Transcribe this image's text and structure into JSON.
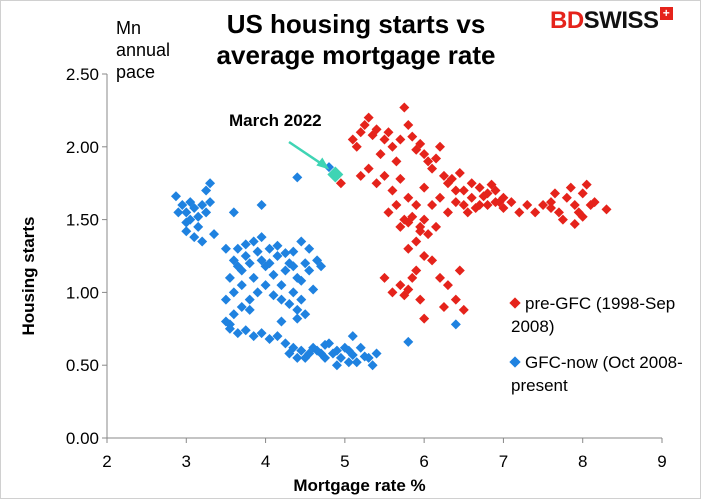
{
  "chart_data": {
    "type": "scatter",
    "title": "US housing starts vs average mortgage rate",
    "unit_label": "Mn annual pace",
    "xlabel": "Mortgage rate %",
    "ylabel": "Housing starts",
    "xlim": [
      2,
      9
    ],
    "ylim": [
      0,
      2.5
    ],
    "x_ticks": [
      "2",
      "3",
      "4",
      "5",
      "6",
      "7",
      "8",
      "9"
    ],
    "y_ticks": [
      "0.00",
      "0.50",
      "1.00",
      "1.50",
      "2.00",
      "2.50"
    ],
    "grid": false,
    "legend_position": "right",
    "brand": {
      "prefix": "BD",
      "suffix": "SWISS",
      "mark": "+"
    },
    "annotation": {
      "label": "March 2022",
      "x": 4.88,
      "y": 1.81,
      "color": "#3fd4b4"
    },
    "series": [
      {
        "name": "pre-GFC (1998-Sep 2008)",
        "color": "#e5231b",
        "points": [
          [
            4.95,
            1.75
          ],
          [
            5.1,
            2.05
          ],
          [
            5.15,
            2.0
          ],
          [
            5.2,
            2.1
          ],
          [
            5.25,
            2.15
          ],
          [
            5.3,
            2.2
          ],
          [
            5.35,
            2.08
          ],
          [
            5.4,
            2.12
          ],
          [
            5.45,
            1.95
          ],
          [
            5.5,
            2.05
          ],
          [
            5.55,
            2.1
          ],
          [
            5.6,
            2.0
          ],
          [
            5.65,
            1.9
          ],
          [
            5.7,
            2.05
          ],
          [
            5.75,
            2.27
          ],
          [
            5.8,
            2.15
          ],
          [
            5.85,
            2.07
          ],
          [
            5.9,
            1.98
          ],
          [
            5.95,
            2.02
          ],
          [
            6.0,
            1.95
          ],
          [
            6.05,
            1.9
          ],
          [
            6.1,
            1.85
          ],
          [
            6.15,
            1.92
          ],
          [
            6.2,
            2.0
          ],
          [
            6.25,
            1.8
          ],
          [
            6.3,
            1.75
          ],
          [
            6.35,
            1.78
          ],
          [
            6.4,
            1.7
          ],
          [
            6.45,
            1.82
          ],
          [
            6.5,
            1.6
          ],
          [
            5.2,
            1.8
          ],
          [
            5.3,
            1.85
          ],
          [
            5.4,
            1.75
          ],
          [
            5.5,
            1.8
          ],
          [
            5.6,
            1.7
          ],
          [
            5.7,
            1.78
          ],
          [
            5.8,
            1.65
          ],
          [
            5.9,
            1.6
          ],
          [
            6.0,
            1.72
          ],
          [
            6.1,
            1.6
          ],
          [
            6.2,
            1.65
          ],
          [
            6.3,
            1.55
          ],
          [
            6.4,
            1.62
          ],
          [
            6.5,
            1.7
          ],
          [
            6.6,
            1.65
          ],
          [
            6.7,
            1.6
          ],
          [
            6.8,
            1.68
          ],
          [
            6.9,
            1.62
          ],
          [
            7.0,
            1.58
          ],
          [
            7.1,
            1.62
          ],
          [
            6.6,
            1.75
          ],
          [
            6.7,
            1.72
          ],
          [
            6.8,
            1.6
          ],
          [
            6.9,
            1.7
          ],
          [
            7.0,
            1.65
          ],
          [
            6.55,
            1.55
          ],
          [
            6.65,
            1.58
          ],
          [
            6.75,
            1.66
          ],
          [
            6.85,
            1.74
          ],
          [
            6.95,
            1.62
          ],
          [
            7.2,
            1.55
          ],
          [
            7.3,
            1.6
          ],
          [
            7.4,
            1.55
          ],
          [
            7.5,
            1.6
          ],
          [
            7.6,
            1.62
          ],
          [
            7.7,
            1.55
          ],
          [
            7.8,
            1.65
          ],
          [
            7.9,
            1.6
          ],
          [
            8.0,
            1.68
          ],
          [
            8.1,
            1.6
          ],
          [
            7.65,
            1.68
          ],
          [
            7.75,
            1.5
          ],
          [
            7.85,
            1.72
          ],
          [
            7.95,
            1.55
          ],
          [
            8.05,
            1.74
          ],
          [
            8.15,
            1.62
          ],
          [
            8.3,
            1.57
          ],
          [
            7.6,
            1.58
          ],
          [
            8.0,
            1.52
          ],
          [
            7.9,
            1.47
          ],
          [
            5.55,
            1.55
          ],
          [
            5.65,
            1.6
          ],
          [
            5.75,
            1.5
          ],
          [
            5.85,
            1.52
          ],
          [
            5.95,
            1.45
          ],
          [
            6.05,
            1.4
          ],
          [
            6.15,
            1.45
          ],
          [
            5.7,
            1.45
          ],
          [
            5.8,
            1.48
          ],
          [
            6.0,
            1.5
          ],
          [
            5.8,
            1.3
          ],
          [
            5.9,
            1.35
          ],
          [
            6.0,
            1.25
          ],
          [
            6.1,
            1.22
          ],
          [
            5.9,
            1.15
          ],
          [
            5.7,
            1.05
          ],
          [
            5.6,
            1.0
          ],
          [
            5.8,
            1.02
          ],
          [
            5.95,
            0.95
          ],
          [
            6.2,
            1.1
          ],
          [
            6.3,
            1.05
          ],
          [
            6.4,
            0.95
          ],
          [
            6.5,
            0.88
          ],
          [
            5.85,
            1.1
          ],
          [
            5.95,
            1.42
          ],
          [
            6.0,
            0.82
          ],
          [
            6.25,
            0.9
          ],
          [
            6.45,
            1.15
          ],
          [
            5.5,
            1.1
          ],
          [
            5.75,
            0.98
          ]
        ]
      },
      {
        "name": "GFC-now (Oct 2008-present",
        "color": "#1f82e0",
        "points": [
          [
            2.87,
            1.66
          ],
          [
            2.95,
            1.6
          ],
          [
            3.0,
            1.55
          ],
          [
            3.05,
            1.5
          ],
          [
            3.1,
            1.58
          ],
          [
            3.15,
            1.45
          ],
          [
            3.2,
            1.6
          ],
          [
            3.25,
            1.7
          ],
          [
            3.3,
            1.75
          ],
          [
            3.1,
            1.38
          ],
          [
            2.9,
            1.55
          ],
          [
            3.0,
            1.48
          ],
          [
            3.15,
            1.52
          ],
          [
            3.2,
            1.35
          ],
          [
            3.05,
            1.62
          ],
          [
            3.25,
            1.55
          ],
          [
            3.0,
            1.42
          ],
          [
            3.3,
            1.62
          ],
          [
            3.6,
            1.55
          ],
          [
            3.95,
            1.6
          ],
          [
            4.4,
            1.79
          ],
          [
            4.8,
            1.86
          ],
          [
            3.35,
            1.4
          ],
          [
            3.5,
            1.3
          ],
          [
            3.6,
            1.22
          ],
          [
            3.65,
            1.18
          ],
          [
            3.7,
            1.15
          ],
          [
            3.75,
            1.25
          ],
          [
            3.8,
            1.2
          ],
          [
            3.85,
            1.1
          ],
          [
            3.9,
            1.28
          ],
          [
            3.95,
            1.22
          ],
          [
            4.0,
            1.18
          ],
          [
            4.05,
            1.3
          ],
          [
            4.1,
            1.12
          ],
          [
            4.15,
            1.25
          ],
          [
            4.2,
            1.05
          ],
          [
            4.25,
            1.15
          ],
          [
            4.3,
            1.2
          ],
          [
            4.35,
            1.28
          ],
          [
            4.4,
            1.1
          ],
          [
            4.45,
            1.35
          ],
          [
            3.55,
            1.1
          ],
          [
            3.6,
            1.0
          ],
          [
            3.7,
            1.05
          ],
          [
            3.8,
            0.95
          ],
          [
            3.9,
            1.0
          ],
          [
            4.0,
            1.05
          ],
          [
            4.1,
            0.98
          ],
          [
            4.2,
            0.95
          ],
          [
            4.3,
            0.92
          ],
          [
            4.4,
            0.88
          ],
          [
            3.6,
            0.85
          ],
          [
            3.7,
            0.9
          ],
          [
            3.8,
            0.88
          ],
          [
            3.5,
            0.95
          ],
          [
            3.65,
            1.3
          ],
          [
            3.75,
            1.33
          ],
          [
            3.85,
            1.35
          ],
          [
            3.95,
            1.38
          ],
          [
            4.05,
            1.2
          ],
          [
            4.15,
            1.32
          ],
          [
            4.25,
            1.27
          ],
          [
            4.35,
            1.18
          ],
          [
            4.45,
            1.08
          ],
          [
            4.5,
            1.2
          ],
          [
            4.55,
            1.15
          ],
          [
            4.6,
            1.02
          ],
          [
            4.65,
            1.22
          ],
          [
            4.7,
            1.18
          ],
          [
            4.55,
            1.3
          ],
          [
            4.35,
            1.0
          ],
          [
            4.45,
            0.95
          ],
          [
            4.5,
            0.85
          ],
          [
            4.4,
            0.82
          ],
          [
            4.2,
            0.8
          ],
          [
            3.5,
            0.8
          ],
          [
            3.55,
            0.78
          ],
          [
            3.55,
            0.75
          ],
          [
            3.65,
            0.72
          ],
          [
            3.75,
            0.74
          ],
          [
            3.85,
            0.7
          ],
          [
            3.95,
            0.72
          ],
          [
            4.05,
            0.68
          ],
          [
            4.15,
            0.7
          ],
          [
            4.25,
            0.65
          ],
          [
            4.35,
            0.62
          ],
          [
            4.45,
            0.6
          ],
          [
            4.55,
            0.58
          ],
          [
            4.65,
            0.6
          ],
          [
            4.75,
            0.55
          ],
          [
            4.85,
            0.58
          ],
          [
            4.95,
            0.55
          ],
          [
            5.05,
            0.6
          ],
          [
            5.15,
            0.52
          ],
          [
            5.25,
            0.56
          ],
          [
            5.35,
            0.5
          ],
          [
            4.3,
            0.58
          ],
          [
            4.4,
            0.55
          ],
          [
            4.6,
            0.62
          ],
          [
            4.7,
            0.58
          ],
          [
            4.8,
            0.65
          ],
          [
            4.9,
            0.5
          ],
          [
            5.0,
            0.62
          ],
          [
            5.1,
            0.57
          ],
          [
            5.2,
            0.62
          ],
          [
            5.3,
            0.55
          ],
          [
            5.4,
            0.58
          ],
          [
            4.5,
            0.55
          ],
          [
            4.9,
            0.6
          ],
          [
            5.1,
            0.7
          ],
          [
            4.75,
            0.64
          ],
          [
            5.05,
            0.52
          ],
          [
            5.8,
            0.66
          ],
          [
            6.4,
            0.78
          ]
        ]
      }
    ]
  }
}
